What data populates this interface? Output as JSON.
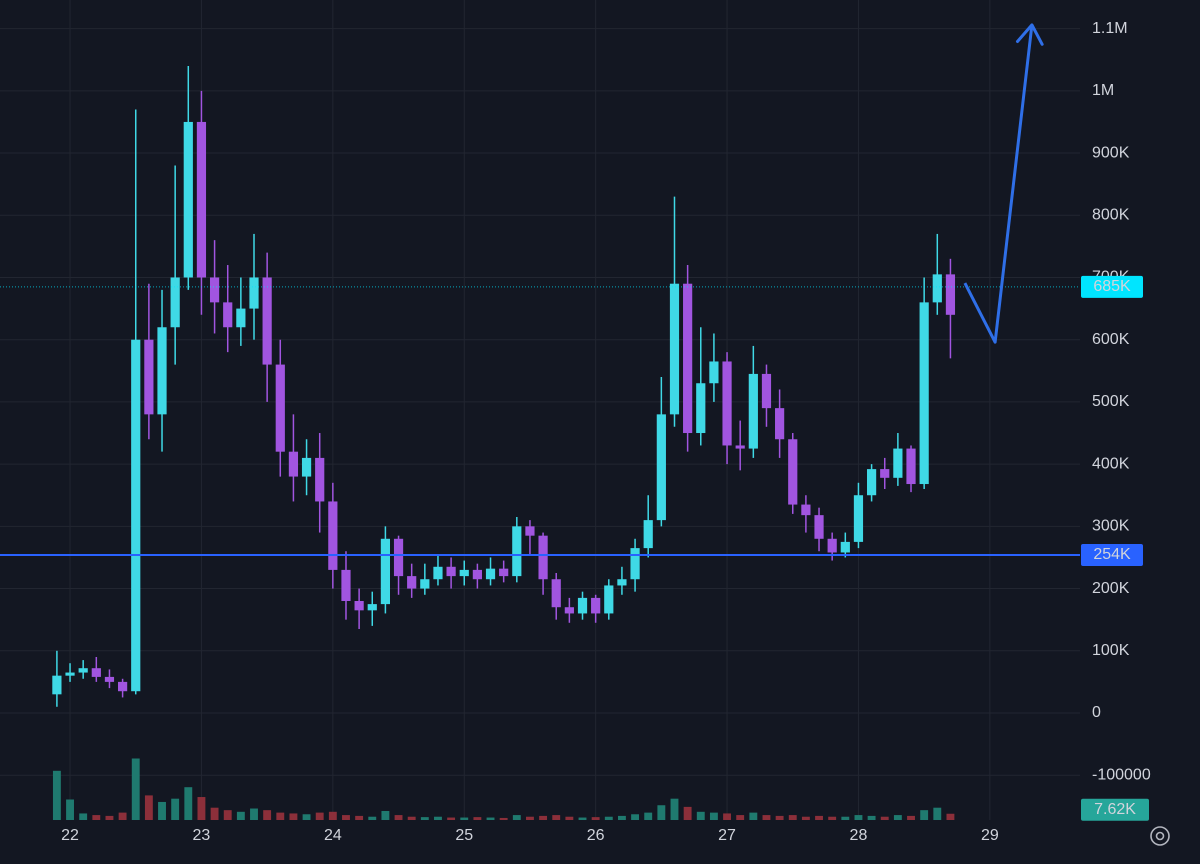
{
  "chart_data": {
    "type": "candlestick",
    "x": [
      21.9,
      22.0,
      22.1,
      22.2,
      22.3,
      22.4,
      22.5,
      22.6,
      22.7,
      22.8,
      22.9,
      23.0,
      23.1,
      23.2,
      23.3,
      23.4,
      23.5,
      23.6,
      23.7,
      23.8,
      23.9,
      24.0,
      24.1,
      24.2,
      24.3,
      24.4,
      24.5,
      24.6,
      24.7,
      24.8,
      24.9,
      25.0,
      25.1,
      25.2,
      25.3,
      25.4,
      25.5,
      25.6,
      25.7,
      25.8,
      25.9,
      26.0,
      26.1,
      26.2,
      26.3,
      26.4,
      26.5,
      26.6,
      26.7,
      26.8,
      26.9,
      27.0,
      27.1,
      27.2,
      27.3,
      27.4,
      27.5,
      27.6,
      27.7,
      27.8,
      27.9,
      28.0,
      28.1,
      28.2,
      28.3,
      28.4,
      28.5,
      28.6,
      28.7
    ],
    "open": [
      30000,
      60000,
      65000,
      72000,
      58000,
      50000,
      35000,
      600000,
      480000,
      620000,
      700000,
      950000,
      700000,
      660000,
      620000,
      650000,
      700000,
      560000,
      420000,
      380000,
      410000,
      340000,
      230000,
      180000,
      165000,
      175000,
      280000,
      220000,
      200000,
      215000,
      235000,
      220000,
      230000,
      215000,
      232000,
      220000,
      300000,
      285000,
      215000,
      170000,
      160000,
      185000,
      160000,
      205000,
      215000,
      265000,
      310000,
      480000,
      690000,
      450000,
      530000,
      565000,
      430000,
      425000,
      545000,
      490000,
      440000,
      335000,
      318000,
      280000,
      258000,
      275000,
      350000,
      392000,
      378000,
      425000,
      368000,
      660000,
      705000
    ],
    "high": [
      100000,
      80000,
      85000,
      90000,
      70000,
      55000,
      970000,
      690000,
      680000,
      880000,
      1040000,
      1000000,
      760000,
      720000,
      700000,
      770000,
      740000,
      600000,
      480000,
      440000,
      450000,
      370000,
      260000,
      200000,
      195000,
      300000,
      285000,
      240000,
      240000,
      255000,
      250000,
      245000,
      240000,
      250000,
      245000,
      315000,
      310000,
      290000,
      225000,
      185000,
      195000,
      190000,
      215000,
      235000,
      280000,
      350000,
      540000,
      830000,
      720000,
      620000,
      610000,
      580000,
      470000,
      590000,
      560000,
      520000,
      450000,
      350000,
      330000,
      290000,
      290000,
      370000,
      400000,
      410000,
      450000,
      430000,
      700000,
      770000,
      730000
    ],
    "low": [
      10000,
      50000,
      55000,
      50000,
      40000,
      25000,
      30000,
      440000,
      420000,
      560000,
      680000,
      640000,
      610000,
      580000,
      590000,
      600000,
      500000,
      380000,
      340000,
      350000,
      290000,
      200000,
      150000,
      135000,
      140000,
      160000,
      190000,
      185000,
      190000,
      205000,
      200000,
      205000,
      200000,
      205000,
      210000,
      210000,
      255000,
      190000,
      150000,
      145000,
      150000,
      145000,
      150000,
      190000,
      195000,
      250000,
      300000,
      460000,
      420000,
      430000,
      500000,
      400000,
      390000,
      410000,
      460000,
      410000,
      320000,
      290000,
      260000,
      245000,
      250000,
      265000,
      340000,
      360000,
      365000,
      355000,
      360000,
      640000,
      570000
    ],
    "close": [
      60000,
      65000,
      72000,
      58000,
      50000,
      35000,
      600000,
      480000,
      620000,
      700000,
      950000,
      700000,
      660000,
      620000,
      650000,
      700000,
      560000,
      420000,
      380000,
      410000,
      340000,
      230000,
      180000,
      165000,
      175000,
      280000,
      220000,
      200000,
      215000,
      235000,
      220000,
      230000,
      215000,
      232000,
      220000,
      300000,
      285000,
      215000,
      170000,
      160000,
      185000,
      160000,
      205000,
      215000,
      265000,
      310000,
      480000,
      690000,
      450000,
      530000,
      565000,
      430000,
      425000,
      545000,
      490000,
      440000,
      335000,
      318000,
      280000,
      258000,
      275000,
      350000,
      392000,
      378000,
      425000,
      368000,
      660000,
      705000,
      640000
    ],
    "up_color": "#3fd9e6",
    "down_color": "#a155e0",
    "volume": {
      "values": [
        60000,
        25000,
        8000,
        6000,
        5000,
        9000,
        75000,
        30000,
        22000,
        26000,
        40000,
        28000,
        15000,
        12000,
        10000,
        14000,
        12000,
        9000,
        8000,
        7000,
        9000,
        10000,
        6000,
        5000,
        4000,
        11000,
        6000,
        4000,
        3500,
        4000,
        3000,
        3000,
        3500,
        3000,
        2500,
        6000,
        4000,
        5000,
        6000,
        4000,
        3000,
        3500,
        4000,
        5000,
        7000,
        9000,
        18000,
        26000,
        16000,
        10000,
        9000,
        8000,
        6000,
        9000,
        6000,
        5000,
        6000,
        4000,
        5000,
        4000,
        4000,
        6000,
        5000,
        4000,
        6000,
        5000,
        12000,
        15000,
        7620
      ],
      "up_color": "#1f7a6f",
      "down_color": "#8c2f3a",
      "axis": "y2"
    },
    "current_volume": {
      "value": 7620,
      "label": "7.62K",
      "color": "#26a69a"
    },
    "price_lines": [
      {
        "value": 685000,
        "label": "685K",
        "color": "#00e5ff",
        "style": "dotted"
      },
      {
        "value": 254000,
        "label": "254K",
        "color": "#2962ff",
        "style": "solid"
      }
    ],
    "drawing": {
      "x": [
        28.81,
        29.04,
        29.32
      ],
      "y": [
        691000,
        596000,
        1106000
      ],
      "color": "#2f6fe8"
    },
    "xlim": [
      21.467,
      29.686
    ],
    "xticks": [
      22,
      23,
      24,
      25,
      26,
      27,
      28,
      29
    ],
    "ylim": [
      -172000,
      1146000
    ],
    "yticks": [
      -100000,
      0,
      {
        "value": 100000,
        "label": "100K"
      },
      {
        "value": 200000,
        "label": "200K"
      },
      {
        "value": 300000,
        "label": "300K"
      },
      {
        "value": 400000,
        "label": "400K"
      },
      {
        "value": 500000,
        "label": "500K"
      },
      {
        "value": 600000,
        "label": "600K"
      },
      {
        "value": 700000,
        "label": "700K"
      },
      {
        "value": 800000,
        "label": "800K"
      },
      {
        "value": 900000,
        "label": "900K"
      },
      {
        "value": 1000000,
        "label": "1M"
      },
      {
        "value": 1100000,
        "label": "1.1M"
      }
    ],
    "y2lim": [
      0,
      1000000
    ],
    "grid": true
  }
}
